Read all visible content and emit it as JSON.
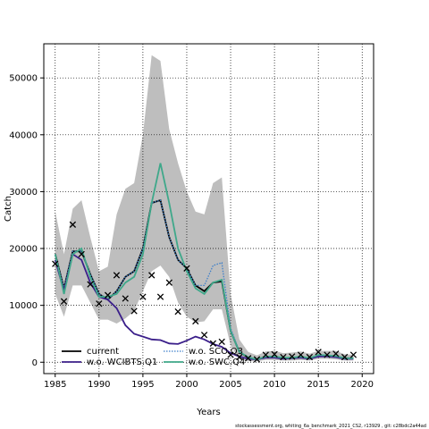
{
  "chart_data": {
    "type": "line",
    "xlabel": "Years",
    "ylabel": "Catch",
    "xlim": [
      1983.7,
      2021.3
    ],
    "ylim": [
      -2000,
      56000
    ],
    "x_ticks": [
      1985,
      1990,
      1995,
      2000,
      2005,
      2010,
      2015,
      2020
    ],
    "y_ticks": [
      0,
      10000,
      20000,
      30000,
      40000,
      50000
    ],
    "grid": true,
    "legend_position": "bottom-left",
    "band": {
      "x": [
        1985,
        1986,
        1987,
        1988,
        1989,
        1990,
        1991,
        1992,
        1993,
        1994,
        1995,
        1996,
        1997,
        1998,
        1999,
        2000,
        2001,
        2002,
        2003,
        2004,
        2005,
        2006,
        2007,
        2008,
        2009,
        2010,
        2011,
        2012,
        2013,
        2014,
        2015,
        2016,
        2017,
        2018,
        2019
      ],
      "upper": [
        26500,
        19000,
        27000,
        28500,
        22000,
        16000,
        16800,
        26000,
        30500,
        31500,
        40000,
        54000,
        53000,
        41000,
        35000,
        30000,
        26500,
        26000,
        31500,
        32500,
        12000,
        4000,
        1800,
        1200,
        1900,
        2000,
        1600,
        1700,
        1900,
        1500,
        2000,
        2000,
        2000,
        1400,
        1300
      ],
      "lower": [
        12000,
        8000,
        13500,
        13500,
        10500,
        7500,
        7500,
        6800,
        7700,
        9000,
        12500,
        16000,
        17000,
        15000,
        10500,
        8000,
        7000,
        7200,
        9300,
        9300,
        3000,
        500,
        200,
        150,
        400,
        400,
        300,
        300,
        400,
        300,
        600,
        600,
        500,
        300,
        300
      ],
      "color": "#bebebe"
    },
    "series": [
      {
        "name": "current",
        "color": "#000000",
        "style": "solid",
        "values": [
          19000,
          13000,
          19500,
          19500,
          15500,
          12000,
          11000,
          12500,
          15000,
          16000,
          20000,
          28000,
          28500,
          22000,
          18000,
          16500,
          13500,
          12500,
          14000,
          14200,
          5500,
          1800,
          800,
          500,
          900,
          900,
          700,
          800,
          900,
          700,
          1200,
          1100,
          1000,
          700,
          700
        ]
      },
      {
        "name": "w.o. SCO.Q3",
        "color": "#3d7fc9",
        "style": "dotted",
        "values": [
          19000,
          13000,
          19500,
          19500,
          15500,
          12000,
          11000,
          12500,
          15000,
          16000,
          20000,
          28000,
          28500,
          22000,
          18000,
          16500,
          13500,
          13500,
          17000,
          17500,
          6000,
          1900,
          800,
          500,
          900,
          900,
          700,
          800,
          900,
          700,
          1200,
          1100,
          1000,
          700,
          700
        ]
      },
      {
        "name": "w.o. WCIBTS.Q1",
        "color": "#3b1f8a",
        "style": "solid",
        "values": [
          18000,
          12500,
          19000,
          18000,
          14000,
          11500,
          11000,
          9500,
          6500,
          5000,
          4500,
          4000,
          3900,
          3300,
          3200,
          3800,
          4500,
          4000,
          3200,
          2700,
          1600,
          1000,
          600,
          500,
          800,
          800,
          600,
          700,
          800,
          600,
          1000,
          1000,
          900,
          600,
          600
        ]
      },
      {
        "name": "w.o. SWC.Q4",
        "color": "#3fa88a",
        "style": "solid",
        "values": [
          19000,
          12000,
          19000,
          20000,
          15000,
          11500,
          11500,
          12000,
          14000,
          15000,
          19000,
          28000,
          35000,
          28000,
          20000,
          16000,
          13000,
          12000,
          14000,
          14500,
          5500,
          1800,
          900,
          500,
          1000,
          1000,
          800,
          800,
          1000,
          700,
          1300,
          1200,
          1100,
          700,
          700
        ]
      }
    ],
    "observed": {
      "marker": "x",
      "x": [
        1985,
        1986,
        1987,
        1988,
        1989,
        1990,
        1991,
        1992,
        1993,
        1994,
        1995,
        1996,
        1997,
        1998,
        1999,
        2000,
        2001,
        2002,
        2003,
        2004,
        2005,
        2006,
        2007,
        2008,
        2009,
        2010,
        2011,
        2012,
        2013,
        2014,
        2015,
        2016,
        2017,
        2018,
        2019
      ],
      "y": [
        17300,
        10700,
        24200,
        19000,
        13700,
        10300,
        11800,
        15300,
        11200,
        9000,
        11500,
        15300,
        11500,
        14000,
        8900,
        16500,
        7200,
        4800,
        3300,
        3600,
        1300,
        900,
        700,
        500,
        1300,
        1400,
        900,
        1000,
        1300,
        900,
        1800,
        1300,
        1500,
        900,
        1300
      ]
    },
    "legend": [
      {
        "label": "current",
        "series": 0
      },
      {
        "label": "w.o. WCIBTS.Q1",
        "series": 2
      },
      {
        "label": "w.o. SCO.Q3",
        "series": 1
      },
      {
        "label": "w.o. SWC.Q4",
        "series": 3
      }
    ]
  },
  "footer": "stockassessment.org, whiting_6a_benchmark_2021_CS2, r13929 , git: c28bdc2a44ad"
}
